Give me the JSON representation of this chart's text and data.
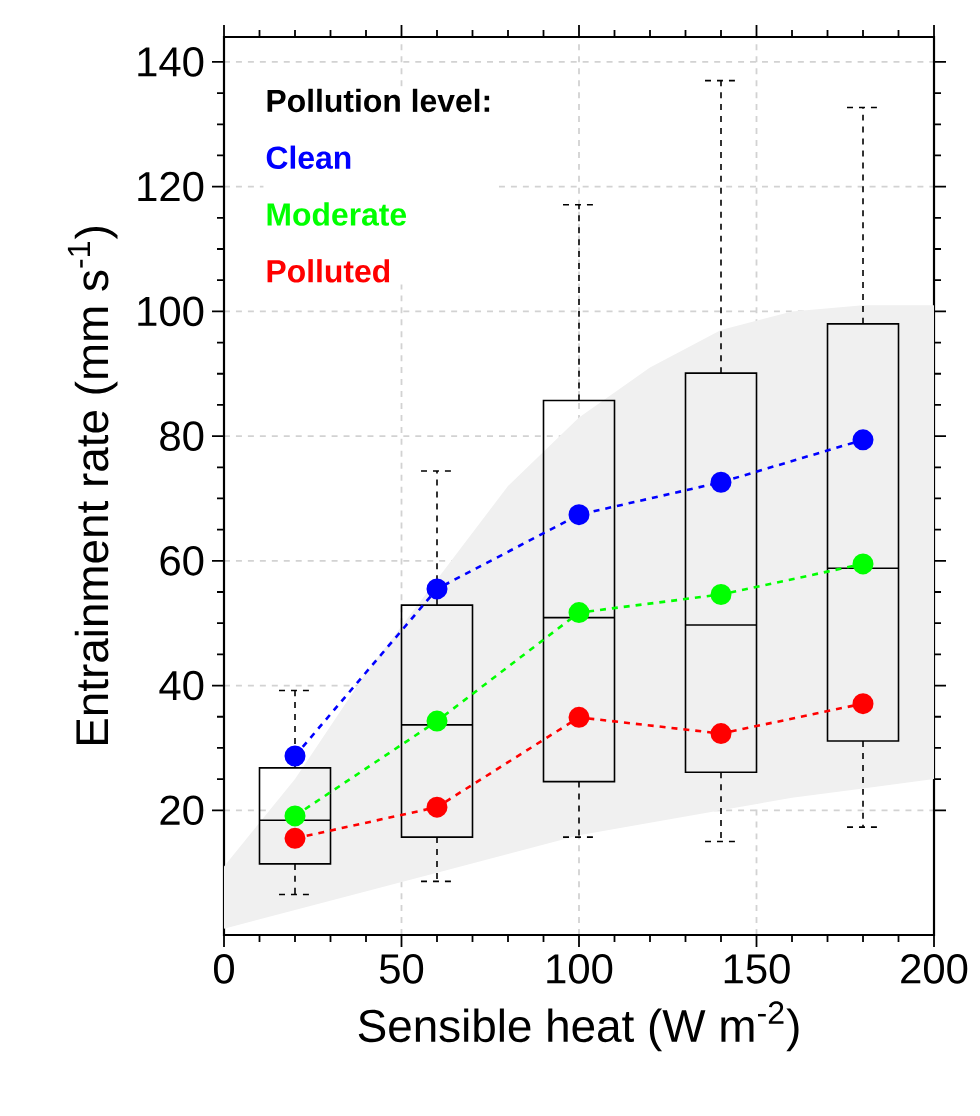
{
  "chart_data": {
    "type": "box",
    "xlabel": "Sensible heat (W m$^{-2}$)",
    "ylabel": "Entrainment rate (mm s$^{-1}$)",
    "x": [
      20,
      60,
      100,
      140,
      180
    ],
    "boxes": [
      {
        "low": 6.5,
        "q1": 11.4,
        "median": 18.4,
        "q3": 26.8,
        "high": 39.2
      },
      {
        "low": 8.6,
        "q1": 15.7,
        "median": 33.7,
        "q3": 52.9,
        "high": 74.4
      },
      {
        "low": 15.7,
        "q1": 24.6,
        "median": 50.9,
        "q3": 85.7,
        "high": 117.1
      },
      {
        "low": 15,
        "q1": 26.1,
        "median": 49.7,
        "q3": 90.1,
        "high": 137
      },
      {
        "low": 17.3,
        "q1": 31.1,
        "median": 58.8,
        "q3": 98,
        "high": 132.7
      }
    ],
    "series": [
      {
        "type": "area",
        "color": "#f0f0f0",
        "x": [
          0,
          20,
          40,
          60,
          80,
          100,
          120,
          140,
          160,
          180,
          200
        ],
        "values": [
          null,
          null,
          null,
          null,
          null,
          null,
          null,
          null,
          null,
          null,
          null
        ],
        "lower": [
          1,
          4,
          7,
          10,
          13,
          16,
          18,
          20,
          22,
          23.5,
          25
        ],
        "upper": [
          11,
          25,
          42,
          57,
          72,
          83,
          91,
          97,
          100,
          101,
          101
        ]
      },
      {
        "type": "line",
        "name": "Clean",
        "color": "#0000ff",
        "x": [
          20,
          60,
          100,
          140,
          180
        ],
        "values": [
          28.7,
          55.5,
          67.4,
          72.6,
          79.4
        ]
      },
      {
        "type": "line",
        "name": "Moderate",
        "color": "#00ff00",
        "x": [
          20,
          60,
          100,
          140,
          180
        ],
        "values": [
          19.1,
          34.3,
          51.7,
          54.6,
          59.5
        ]
      },
      {
        "type": "line",
        "name": "Polluted",
        "color": "#ff0000",
        "x": [
          20,
          60,
          100,
          140,
          180
        ],
        "values": [
          15.5,
          20.5,
          34.9,
          32.3,
          37.1
        ]
      }
    ],
    "legend_title": "Pollution level:",
    "legend": "top left",
    "marker": "circle",
    "line_style": "dashed",
    "grid": true,
    "xlim": [
      0,
      200
    ],
    "xticks": [
      0,
      50,
      100,
      150,
      200
    ],
    "ylim": [
      0,
      144
    ],
    "yticks": [
      20,
      40,
      60,
      80,
      100,
      120,
      140
    ]
  }
}
